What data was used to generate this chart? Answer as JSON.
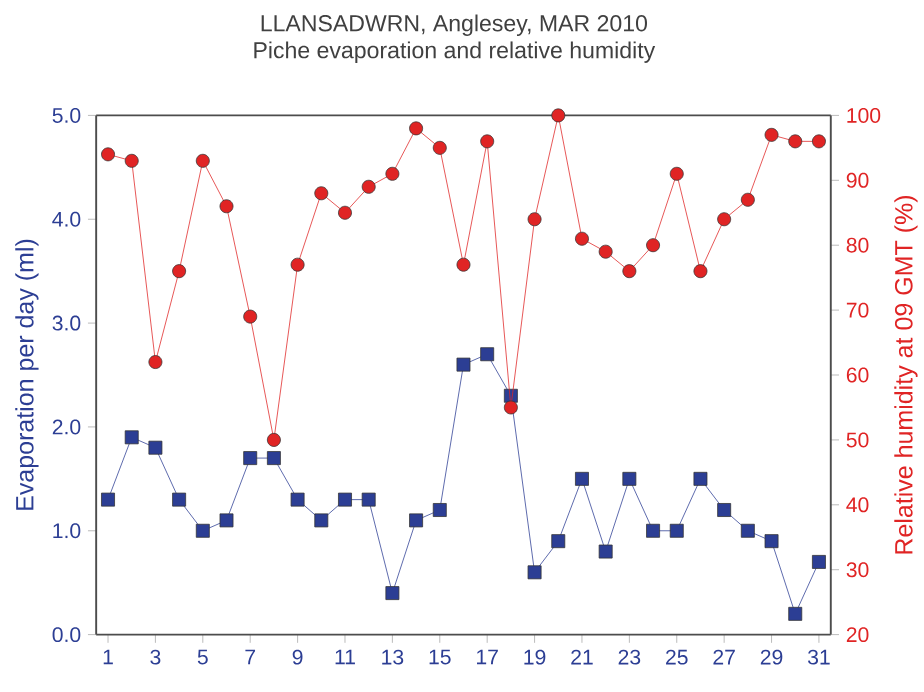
{
  "chart_data": {
    "type": "line",
    "title": "LLANSADWRN, Anglesey, MAR 2010",
    "subtitle": "Piche evaporation and relative humidity",
    "ylabel": "Evaporation per day (ml)",
    "y2label": "Relative humidity at 09 GMT (%)",
    "x": [
      1,
      2,
      3,
      4,
      5,
      6,
      7,
      8,
      9,
      10,
      11,
      12,
      13,
      14,
      15,
      16,
      17,
      18,
      19,
      20,
      21,
      22,
      23,
      24,
      25,
      26,
      27,
      28,
      29,
      30,
      31
    ],
    "xlim": [
      0.5,
      31.5
    ],
    "xticks": [
      1,
      3,
      5,
      7,
      9,
      11,
      13,
      15,
      17,
      19,
      21,
      23,
      25,
      27,
      29,
      31
    ],
    "ylim": [
      0,
      5
    ],
    "yticks": [
      {
        "value": 0,
        "label": "0.0"
      },
      {
        "value": 1,
        "label": "1.0"
      },
      {
        "value": 2,
        "label": "2.0"
      },
      {
        "value": 3,
        "label": "3.0"
      },
      {
        "value": 4,
        "label": "4.0"
      },
      {
        "value": 5,
        "label": "5.0"
      }
    ],
    "y2lim": [
      20,
      100
    ],
    "y2ticks": [
      20,
      30,
      40,
      50,
      60,
      70,
      80,
      90,
      100
    ],
    "series": [
      {
        "color": "#2c3e94",
        "marker": "square",
        "values": [
          1.3,
          1.9,
          1.8,
          1.3,
          1.0,
          1.1,
          1.7,
          1.7,
          1.3,
          1.1,
          1.3,
          1.3,
          0.4,
          1.1,
          1.2,
          2.6,
          2.7,
          2.3,
          0.6,
          0.9,
          1.5,
          0.8,
          1.5,
          1.0,
          1.0,
          1.5,
          1.2,
          1.0,
          0.9,
          0.2,
          0.7
        ]
      },
      {
        "color": "#e02424",
        "marker": "circle",
        "axis": "y2",
        "values": [
          94,
          93,
          62,
          76,
          93,
          86,
          69,
          50,
          77,
          88,
          85,
          89,
          91,
          98,
          95,
          77,
          96,
          55,
          84,
          100,
          81,
          79,
          76,
          80,
          91,
          76,
          84,
          87,
          97,
          96,
          96
        ]
      }
    ]
  }
}
